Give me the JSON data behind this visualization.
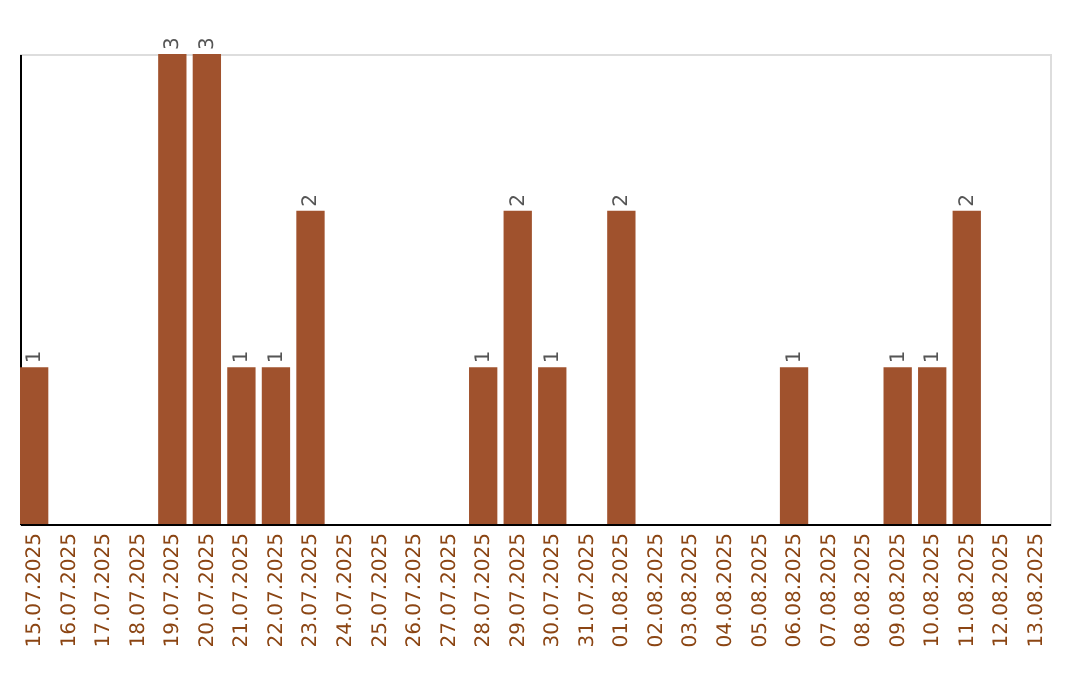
{
  "chart_data": {
    "type": "bar",
    "categories": [
      "15.07.2025",
      "16.07.2025",
      "17.07.2025",
      "18.07.2025",
      "19.07.2025",
      "20.07.2025",
      "21.07.2025",
      "22.07.2025",
      "23.07.2025",
      "24.07.2025",
      "25.07.2025",
      "26.07.2025",
      "27.07.2025",
      "28.07.2025",
      "29.07.2025",
      "30.07.2025",
      "31.07.2025",
      "01.08.2025",
      "02.08.2025",
      "03.08.2025",
      "04.08.2025",
      "05.08.2025",
      "06.08.2025",
      "07.08.2025",
      "08.08.2025",
      "09.08.2025",
      "10.08.2025",
      "11.08.2025",
      "12.08.2025",
      "13.08.2025"
    ],
    "values": [
      1,
      0,
      0,
      0,
      3,
      3,
      1,
      1,
      2,
      0,
      0,
      0,
      0,
      1,
      2,
      1,
      0,
      2,
      0,
      0,
      0,
      0,
      1,
      0,
      0,
      1,
      1,
      2,
      0,
      0
    ],
    "value_labels": [
      "1",
      null,
      null,
      null,
      "3",
      "3",
      "1",
      "1",
      "2",
      null,
      null,
      null,
      null,
      "1",
      "2",
      "1",
      null,
      "2",
      null,
      null,
      null,
      null,
      "1",
      null,
      null,
      "1",
      "1",
      "2",
      null,
      null
    ],
    "color": "#a0522d",
    "tick_labels": "x"
  }
}
